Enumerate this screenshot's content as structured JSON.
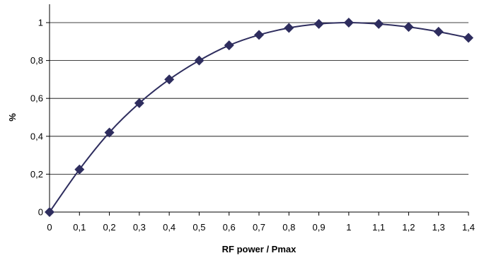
{
  "chart_data": {
    "type": "line",
    "title": "",
    "xlabel": "RF power / Pmax",
    "ylabel": "%",
    "xlim": [
      0,
      1.4
    ],
    "ylim": [
      0,
      1
    ],
    "x_ticks": [
      0,
      0.1,
      0.2,
      0.3,
      0.4,
      0.5,
      0.6,
      0.7,
      0.8,
      0.9,
      1,
      1.1,
      1.2,
      1.3,
      1.4
    ],
    "x_tick_labels": [
      "0",
      "0,1",
      "0,2",
      "0,3",
      "0,4",
      "0,5",
      "0,6",
      "0,7",
      "0,8",
      "0,9",
      "1",
      "1,1",
      "1,2",
      "1,3",
      "1,4"
    ],
    "y_ticks": [
      0,
      0.2,
      0.4,
      0.6,
      0.8,
      1
    ],
    "y_tick_labels": [
      "0",
      "0,2",
      "0,4",
      "0,6",
      "0,8",
      "1"
    ],
    "grid": "horizontal",
    "legend": "none",
    "marker": "diamond",
    "series": [
      {
        "color": "#2e2d5e",
        "x": [
          0,
          0.1,
          0.2,
          0.3,
          0.4,
          0.5,
          0.6,
          0.7,
          0.8,
          0.9,
          1,
          1.1,
          1.2,
          1.3,
          1.4
        ],
        "values": [
          0,
          0.225,
          0.42,
          0.575,
          0.7,
          0.8,
          0.88,
          0.935,
          0.972,
          0.993,
          1.0,
          0.993,
          0.977,
          0.952,
          0.92
        ]
      }
    ]
  }
}
